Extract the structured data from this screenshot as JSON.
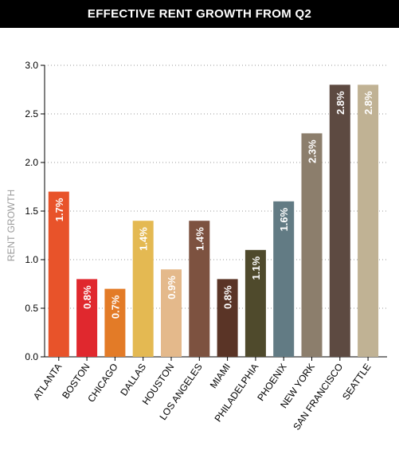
{
  "chart_data": {
    "type": "bar",
    "title": "EFFECTIVE RENT GROWTH FROM Q2",
    "xlabel": "",
    "ylabel": "RENT GROWTH",
    "ylim": [
      0,
      3.0
    ],
    "yticks": [
      "0.0",
      "0.5",
      "1.0",
      "1.5",
      "2.0",
      "2.5",
      "3.0"
    ],
    "grid": "horizontal dotted",
    "categories": [
      "ATLANTA",
      "BOSTON",
      "CHICAGO",
      "DALLAS",
      "HOUSTON",
      "LOS ANGELES",
      "MIAMI",
      "PHILADELPHIA",
      "PHOENIX",
      "NEW YORK",
      "SAN FRANCISCO",
      "SEATTLE"
    ],
    "values": [
      1.7,
      0.8,
      0.7,
      1.4,
      0.9,
      1.4,
      0.8,
      1.1,
      1.6,
      2.3,
      2.8,
      2.8
    ],
    "labels": [
      "1.7%",
      "0.8%",
      "0.7%",
      "1.4%",
      "0.9%",
      "1.4%",
      "0.8%",
      "1.1%",
      "1.6%",
      "2.3%",
      "2.8%",
      "2.8%"
    ],
    "colors": [
      "#e8532a",
      "#e0282e",
      "#e37b27",
      "#e4b952",
      "#e4b98b",
      "#7d5240",
      "#5a3426",
      "#4f4a2c",
      "#627b84",
      "#8c7e6c",
      "#5d4a41",
      "#c0b294"
    ]
  }
}
